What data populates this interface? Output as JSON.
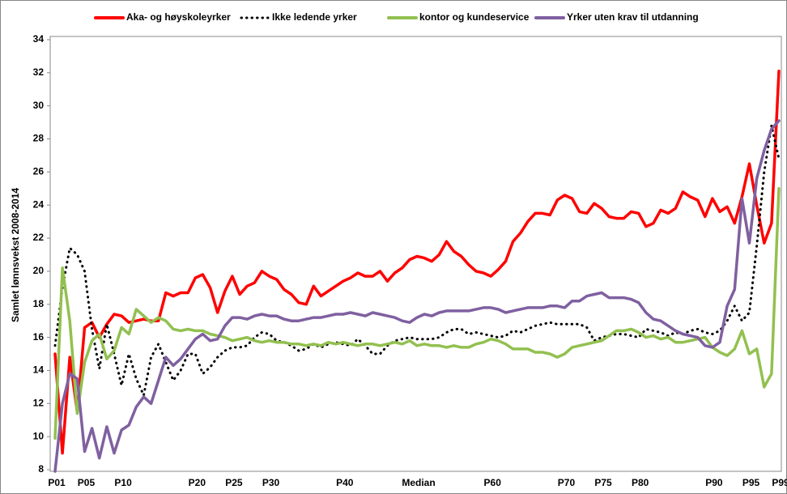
{
  "chart_data": {
    "type": "line",
    "y_label": "Samlet lønnsvekst 2008-2014",
    "categories": [
      "P01",
      null,
      null,
      null,
      "P05",
      null,
      null,
      null,
      null,
      "P10",
      null,
      null,
      null,
      null,
      null,
      null,
      null,
      null,
      null,
      "P20",
      null,
      null,
      null,
      null,
      "P25",
      null,
      null,
      null,
      null,
      "P30",
      null,
      null,
      null,
      null,
      null,
      null,
      null,
      null,
      null,
      "P40",
      null,
      null,
      null,
      null,
      null,
      null,
      null,
      null,
      null,
      "Median",
      null,
      null,
      null,
      null,
      null,
      null,
      null,
      null,
      null,
      "P60",
      null,
      null,
      null,
      null,
      null,
      null,
      null,
      null,
      null,
      "P70",
      null,
      null,
      null,
      null,
      "P75",
      null,
      null,
      null,
      null,
      "P80",
      null,
      null,
      null,
      null,
      null,
      null,
      null,
      null,
      null,
      "P90",
      null,
      null,
      null,
      null,
      "P95",
      null,
      null,
      null,
      "P99"
    ],
    "series": [
      {
        "name": "Aka- og høyskoleyrker",
        "color": "#ff0000",
        "dashed": false,
        "values": [
          15.0,
          9.0,
          14.8,
          11.5,
          16.6,
          16.9,
          16.0,
          16.8,
          17.4,
          17.3,
          16.9,
          17.0,
          17.1,
          17.0,
          17.0,
          18.7,
          18.5,
          18.7,
          18.7,
          19.6,
          19.8,
          19.0,
          17.5,
          18.8,
          19.7,
          18.6,
          19.1,
          19.3,
          20.0,
          19.7,
          19.5,
          18.9,
          18.6,
          18.1,
          18.0,
          19.1,
          18.5,
          18.8,
          19.1,
          19.4,
          19.6,
          19.9,
          19.7,
          19.7,
          20.0,
          19.4,
          19.9,
          20.2,
          20.7,
          20.9,
          20.8,
          20.6,
          21.0,
          21.8,
          21.2,
          20.9,
          20.4,
          20.0,
          19.9,
          19.7,
          20.1,
          20.6,
          21.8,
          22.3,
          23.0,
          23.5,
          23.5,
          23.4,
          24.3,
          24.6,
          24.4,
          23.6,
          23.5,
          24.1,
          23.8,
          23.3,
          23.2,
          23.2,
          23.6,
          23.5,
          22.7,
          22.9,
          23.7,
          23.5,
          23.8,
          24.8,
          24.5,
          24.3,
          23.3,
          24.4,
          23.6,
          23.9,
          22.9,
          24.5,
          26.5,
          24.0,
          21.7,
          22.9,
          32.1
        ]
      },
      {
        "name": "Ikke ledende yrker",
        "color": "#000000",
        "dashed": true,
        "values": [
          15.5,
          19.0,
          21.4,
          21.0,
          20.0,
          16.5,
          14.1,
          16.8,
          15.0,
          13.1,
          15.0,
          13.5,
          12.5,
          14.8,
          15.6,
          14.5,
          13.4,
          14.0,
          15.0,
          15.0,
          13.8,
          14.2,
          14.8,
          15.2,
          15.4,
          15.4,
          15.5,
          16.0,
          16.3,
          16.2,
          15.8,
          15.7,
          15.5,
          15.2,
          15.3,
          15.6,
          15.4,
          15.6,
          15.7,
          15.6,
          15.5,
          15.9,
          15.5,
          15.0,
          15.0,
          15.5,
          15.8,
          15.9,
          16.0,
          15.9,
          15.9,
          15.9,
          16.0,
          16.3,
          16.5,
          16.5,
          16.2,
          16.3,
          16.2,
          16.1,
          16.0,
          16.1,
          16.4,
          16.3,
          16.5,
          16.7,
          16.8,
          16.9,
          16.8,
          16.8,
          16.8,
          16.8,
          16.6,
          15.8,
          16.0,
          16.1,
          16.2,
          16.2,
          16.1,
          16.0,
          16.5,
          16.4,
          16.3,
          16.1,
          16.3,
          16.2,
          16.4,
          16.5,
          16.3,
          16.2,
          16.4,
          17.0,
          17.9,
          17.0,
          17.5,
          21.5,
          26.0,
          28.8,
          26.8
        ]
      },
      {
        "name": "kontor og kundeservice",
        "color": "#92c050",
        "dashed": false,
        "values": [
          9.9,
          20.2,
          17.0,
          11.4,
          14.5,
          15.8,
          16.2,
          14.7,
          15.2,
          16.6,
          16.2,
          17.7,
          17.3,
          16.9,
          17.2,
          17.0,
          16.5,
          16.4,
          16.5,
          16.4,
          16.4,
          16.2,
          16.1,
          16.0,
          15.8,
          15.9,
          16.0,
          15.8,
          15.7,
          15.8,
          15.7,
          15.7,
          15.6,
          15.6,
          15.5,
          15.6,
          15.5,
          15.7,
          15.6,
          15.7,
          15.6,
          15.5,
          15.6,
          15.6,
          15.5,
          15.6,
          15.7,
          15.6,
          15.8,
          15.5,
          15.6,
          15.5,
          15.5,
          15.4,
          15.5,
          15.4,
          15.4,
          15.6,
          15.7,
          15.9,
          15.8,
          15.6,
          15.3,
          15.3,
          15.3,
          15.1,
          15.1,
          15.0,
          14.8,
          15.0,
          15.4,
          15.5,
          15.6,
          15.7,
          15.8,
          16.1,
          16.4,
          16.4,
          16.5,
          16.3,
          16.0,
          16.1,
          15.9,
          16.0,
          15.7,
          15.7,
          15.8,
          15.9,
          16.0,
          15.4,
          15.1,
          14.9,
          15.3,
          16.4,
          15.0,
          15.3,
          13.0,
          13.8,
          25.0
        ]
      },
      {
        "name": "Yrker uten krav til utdanning",
        "color": "#7f60a0",
        "dashed": false,
        "values": [
          7.9,
          12.0,
          13.8,
          13.5,
          9.1,
          10.5,
          8.7,
          10.6,
          9.0,
          10.4,
          10.7,
          11.8,
          12.4,
          12.0,
          13.4,
          14.8,
          14.3,
          14.7,
          15.3,
          15.9,
          16.2,
          15.8,
          15.9,
          16.7,
          17.2,
          17.2,
          17.1,
          17.3,
          17.4,
          17.3,
          17.3,
          17.1,
          17.0,
          17.0,
          17.1,
          17.2,
          17.2,
          17.3,
          17.4,
          17.4,
          17.5,
          17.4,
          17.3,
          17.5,
          17.4,
          17.3,
          17.2,
          17.0,
          16.9,
          17.2,
          17.4,
          17.3,
          17.5,
          17.6,
          17.6,
          17.6,
          17.6,
          17.7,
          17.8,
          17.8,
          17.7,
          17.5,
          17.6,
          17.7,
          17.8,
          17.8,
          17.8,
          17.9,
          17.9,
          17.8,
          18.2,
          18.2,
          18.5,
          18.6,
          18.7,
          18.4,
          18.4,
          18.4,
          18.3,
          18.1,
          17.5,
          17.1,
          17.0,
          16.7,
          16.4,
          16.2,
          16.1,
          16.0,
          15.5,
          15.4,
          15.7,
          17.9,
          18.9,
          24.4,
          21.7,
          25.6,
          27.3,
          28.6,
          29.1
        ]
      }
    ],
    "ylim": [
      8,
      34
    ],
    "yticks": [
      8,
      10,
      12,
      14,
      16,
      18,
      20,
      22,
      24,
      26,
      28,
      30,
      32,
      34
    ],
    "grid": false
  }
}
